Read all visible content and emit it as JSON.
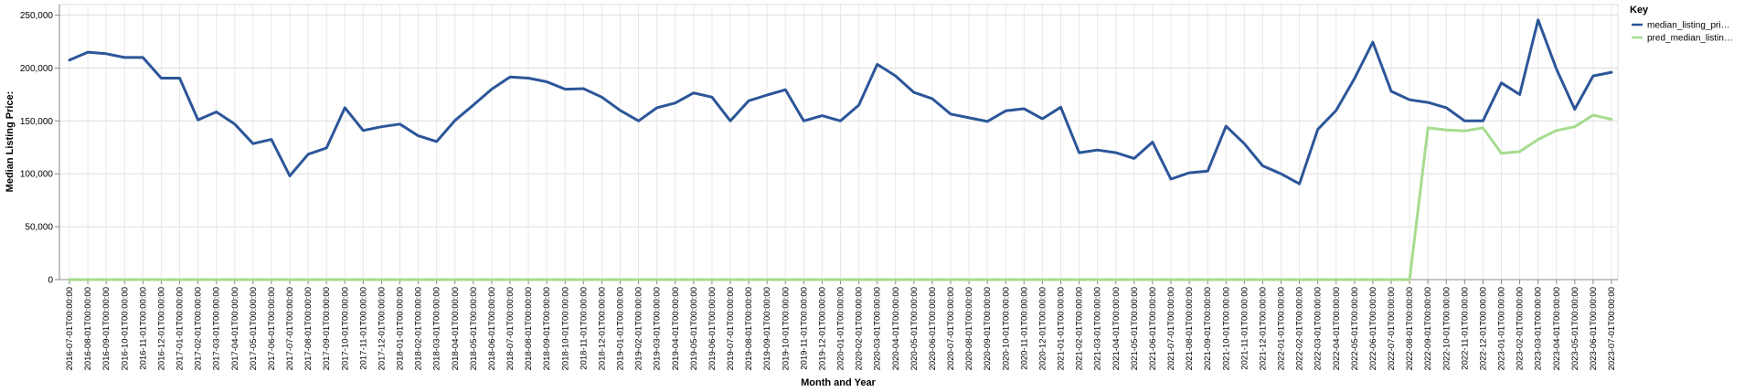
{
  "chart_data": {
    "type": "line",
    "xlabel": "Month and Year",
    "ylabel": "Median Listing Price:",
    "ylim": [
      0,
      260000
    ],
    "yticks": [
      0,
      50000,
      100000,
      150000,
      200000,
      250000
    ],
    "ytick_labels": [
      "0",
      "50,000",
      "100,000",
      "150,000",
      "200,000",
      "250,000"
    ],
    "grid": true,
    "legend": {
      "title": "Key",
      "placement": "top-right",
      "entries": [
        "median_listing_pri…",
        "pred_median_listin…"
      ]
    },
    "x": [
      "2016-07-01T00:00:00",
      "2016-08-01T00:00:00",
      "2016-09-01T00:00:00",
      "2016-10-01T00:00:00",
      "2016-11-01T00:00:00",
      "2016-12-01T00:00:00",
      "2017-01-01T00:00:00",
      "2017-02-01T00:00:00",
      "2017-03-01T00:00:00",
      "2017-04-01T00:00:00",
      "2017-05-01T00:00:00",
      "2017-06-01T00:00:00",
      "2017-07-01T00:00:00",
      "2017-08-01T00:00:00",
      "2017-09-01T00:00:00",
      "2017-10-01T00:00:00",
      "2017-11-01T00:00:00",
      "2017-12-01T00:00:00",
      "2018-01-01T00:00:00",
      "2018-02-01T00:00:00",
      "2018-03-01T00:00:00",
      "2018-04-01T00:00:00",
      "2018-05-01T00:00:00",
      "2018-06-01T00:00:00",
      "2018-07-01T00:00:00",
      "2018-08-01T00:00:00",
      "2018-09-01T00:00:00",
      "2018-10-01T00:00:00",
      "2018-11-01T00:00:00",
      "2018-12-01T00:00:00",
      "2019-01-01T00:00:00",
      "2019-02-01T00:00:00",
      "2019-03-01T00:00:00",
      "2019-04-01T00:00:00",
      "2019-05-01T00:00:00",
      "2019-06-01T00:00:00",
      "2019-07-01T00:00:00",
      "2019-08-01T00:00:00",
      "2019-09-01T00:00:00",
      "2019-10-01T00:00:00",
      "2019-11-01T00:00:00",
      "2019-12-01T00:00:00",
      "2020-01-01T00:00:00",
      "2020-02-01T00:00:00",
      "2020-03-01T00:00:00",
      "2020-04-01T00:00:00",
      "2020-05-01T00:00:00",
      "2020-06-01T00:00:00",
      "2020-07-01T00:00:00",
      "2020-08-01T00:00:00",
      "2020-09-01T00:00:00",
      "2020-10-01T00:00:00",
      "2020-11-01T00:00:00",
      "2020-12-01T00:00:00",
      "2021-01-01T00:00:00",
      "2021-02-01T00:00:00",
      "2021-03-01T00:00:00",
      "2021-04-01T00:00:00",
      "2021-05-01T00:00:00",
      "2021-06-01T00:00:00",
      "2021-07-01T00:00:00",
      "2021-08-01T00:00:00",
      "2021-09-01T00:00:00",
      "2021-10-01T00:00:00",
      "2021-11-01T00:00:00",
      "2021-12-01T00:00:00",
      "2022-01-01T00:00:00",
      "2022-02-01T00:00:00",
      "2022-03-01T00:00:00",
      "2022-04-01T00:00:00",
      "2022-05-01T00:00:00",
      "2022-06-01T00:00:00",
      "2022-07-01T00:00:00",
      "2022-08-01T00:00:00",
      "2022-09-01T00:00:00",
      "2022-10-01T00:00:00",
      "2022-11-01T00:00:00",
      "2022-12-01T00:00:00",
      "2023-01-01T00:00:00",
      "2023-02-01T00:00:00",
      "2023-03-01T00:00:00",
      "2023-04-01T00:00:00",
      "2023-05-01T00:00:00",
      "2023-06-01T00:00:00",
      "2023-07-01T00:00:00"
    ],
    "series": [
      {
        "name": "median_listing_pri…",
        "color": "#2c5699",
        "values": [
          207500,
          215000,
          213500,
          210000,
          210000,
          190500,
          190500,
          151000,
          158500,
          147000,
          128500,
          132500,
          98000,
          118500,
          124500,
          162500,
          141000,
          144500,
          147000,
          136000,
          130500,
          150500,
          165000,
          180000,
          191500,
          190500,
          187000,
          180000,
          180500,
          172500,
          160000,
          150000,
          162500,
          167000,
          176500,
          172500,
          150000,
          169000,
          174500,
          179500,
          150000,
          155000,
          150000,
          165000,
          203500,
          192500,
          177000,
          171000,
          156500,
          153000,
          149500,
          159500,
          161500,
          152000,
          163000,
          120000,
          122500,
          120000,
          114500,
          130000,
          95000,
          101000,
          102500,
          145000,
          128500,
          107500,
          100000,
          90500,
          142000,
          160000,
          190000,
          224500,
          178000,
          170000,
          167500,
          162500,
          150000,
          150000,
          186000,
          175000,
          245500,
          199000,
          161000,
          192500,
          196000
        ]
      },
      {
        "name": "pred_median_listin…",
        "color": "#a6dc8f",
        "values": [
          0,
          0,
          0,
          0,
          0,
          0,
          0,
          0,
          0,
          0,
          0,
          0,
          0,
          0,
          0,
          0,
          0,
          0,
          0,
          0,
          0,
          0,
          0,
          0,
          0,
          0,
          0,
          0,
          0,
          0,
          0,
          0,
          0,
          0,
          0,
          0,
          0,
          0,
          0,
          0,
          0,
          0,
          0,
          0,
          0,
          0,
          0,
          0,
          0,
          0,
          0,
          0,
          0,
          0,
          0,
          0,
          0,
          0,
          0,
          0,
          0,
          0,
          0,
          0,
          0,
          0,
          0,
          0,
          0,
          0,
          0,
          0,
          0,
          0,
          143500,
          141500,
          140500,
          143500,
          119500,
          121000,
          132500,
          141000,
          144500,
          155500,
          151500
        ]
      }
    ]
  }
}
